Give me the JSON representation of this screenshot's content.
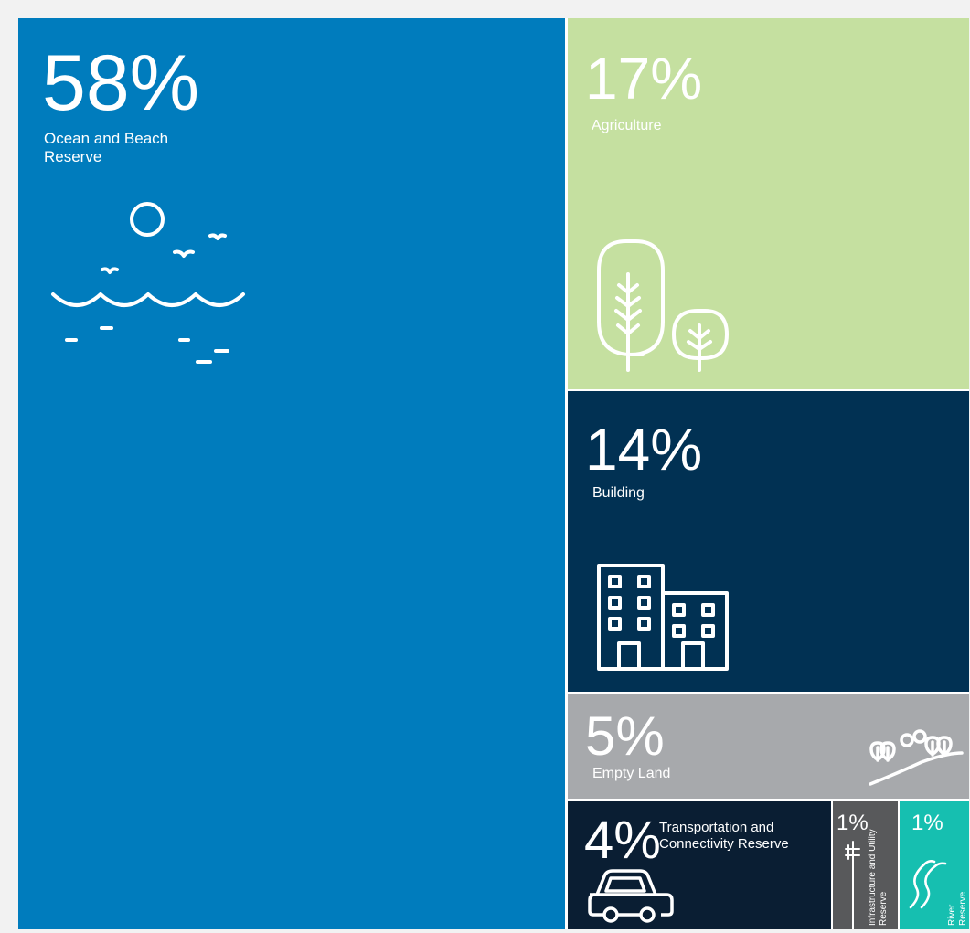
{
  "chart_data": {
    "type": "treemap",
    "values": [
      58,
      17,
      14,
      5,
      4,
      1,
      1
    ],
    "tiles": [
      {
        "key": "ocean",
        "pct_text": "58%",
        "label": "Ocean and Beach Reserve",
        "value": 58,
        "color": "#007cbd",
        "icon": "ocean-waves-icon"
      },
      {
        "key": "agriculture",
        "pct_text": "17%",
        "label": "Agriculture",
        "value": 17,
        "color": "#c5e0a0",
        "icon": "trees-icon"
      },
      {
        "key": "building",
        "pct_text": "14%",
        "label": "Building",
        "value": 14,
        "color": "#013153",
        "icon": "building-icon"
      },
      {
        "key": "empty",
        "pct_text": "5%",
        "label": "Empty Land",
        "value": 5,
        "color": "#a7a9ac",
        "icon": "hill-trees-icon"
      },
      {
        "key": "transport",
        "pct_text": "4%",
        "label": "Transportation and Connectivity Reserve",
        "value": 4,
        "color": "#0a1e33",
        "icon": "car-icon"
      },
      {
        "key": "infra",
        "pct_text": "1%",
        "label": "Infrastructure and Utility Reserve",
        "value": 1,
        "color": "#58595b",
        "icon": "utility-pole-icon"
      },
      {
        "key": "river",
        "pct_text": "1%",
        "label": "River Reserve",
        "value": 1,
        "color": "#16bfb0",
        "icon": "river-icon"
      }
    ]
  }
}
